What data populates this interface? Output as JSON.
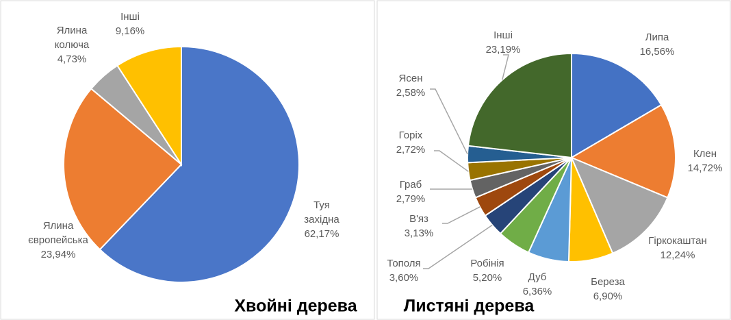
{
  "chart_data": [
    {
      "type": "pie",
      "title": "Хвойні дерева",
      "categories": [
        "Туя західна",
        "Ялина європейська",
        "Ялина колюча",
        "Інші"
      ],
      "values": [
        62.17,
        23.94,
        4.73,
        9.16
      ],
      "value_labels": [
        "62,17%",
        "23,94%",
        "4,73%",
        "9,16%"
      ],
      "colors": [
        "#4a76c8",
        "#ed7d31",
        "#a5a5a5",
        "#ffc000"
      ]
    },
    {
      "type": "pie",
      "title": "Листяні дерева",
      "categories": [
        "Липа",
        "Клен",
        "Гіркокаштан",
        "Береза",
        "Дуб",
        "Робінія",
        "Тополя",
        "В'яз",
        "Граб",
        "Горіх",
        "Ясен",
        "Інші"
      ],
      "values": [
        16.56,
        14.72,
        12.24,
        6.9,
        6.36,
        5.2,
        3.6,
        3.13,
        2.79,
        2.72,
        2.58,
        23.19
      ],
      "value_labels": [
        "16,56%",
        "14,72%",
        "12,24%",
        "6,90%",
        "6,36%",
        "5,20%",
        "3,60%",
        "3,13%",
        "2,79%",
        "2,72%",
        "2,58%",
        "23,19%"
      ],
      "colors": [
        "#4472c4",
        "#ed7d31",
        "#a5a5a5",
        "#ffc000",
        "#5b9bd5",
        "#70ad47",
        "#264478",
        "#9e480e",
        "#636363",
        "#997300",
        "#255e91",
        "#43682b"
      ]
    }
  ]
}
